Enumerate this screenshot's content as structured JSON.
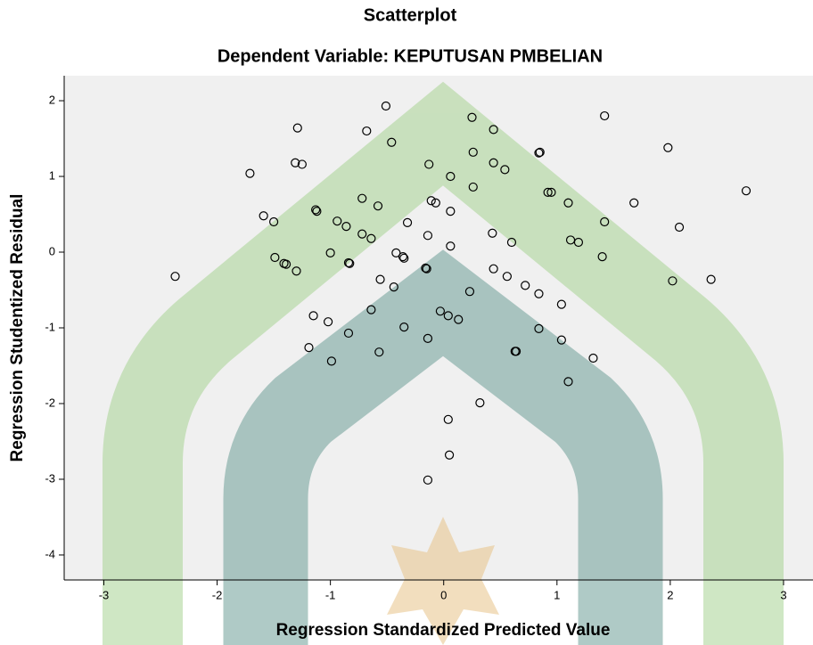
{
  "chart_data": {
    "type": "scatter",
    "title": "Scatterplot",
    "subtitle": "Dependent Variable: KEPUTUSAN PMBELIAN",
    "x_label": "Regression Standardized Predicted Value",
    "y_label": "Regression Studentized Residual",
    "xlim": [
      -3.35,
      3.26
    ],
    "ylim": [
      -4.33,
      2.33
    ],
    "xticks": [
      -3,
      -2,
      -1,
      0,
      1,
      2,
      3
    ],
    "yticks": [
      -4,
      -3,
      -2,
      -1,
      0,
      1,
      2
    ],
    "color": "#000000",
    "background": "#f0f0f0",
    "x": [
      -2.37,
      -1.71,
      -1.59,
      -1.5,
      -1.49,
      -1.41,
      -1.39,
      -1.3,
      -1.29,
      -1.31,
      -1.25,
      -1.19,
      -1.15,
      -1.13,
      -1.12,
      -1.02,
      -1.0,
      -0.99,
      -0.94,
      -0.86,
      -0.84,
      -0.84,
      -0.83,
      -0.72,
      -0.72,
      -0.68,
      -0.64,
      -0.64,
      -0.58,
      -0.57,
      -0.56,
      -0.51,
      -0.46,
      -0.44,
      -0.42,
      -0.36,
      -0.35,
      -0.35,
      -0.32,
      -0.16,
      -0.15,
      -0.14,
      -0.14,
      -0.14,
      -0.13,
      -0.11,
      -0.07,
      -0.03,
      0.04,
      0.04,
      0.05,
      0.06,
      0.06,
      0.06,
      0.13,
      0.23,
      0.25,
      0.26,
      0.26,
      0.32,
      0.43,
      0.44,
      0.44,
      0.44,
      0.54,
      0.56,
      0.6,
      0.63,
      0.64,
      0.72,
      0.84,
      0.84,
      0.85,
      0.84,
      0.92,
      0.95,
      1.04,
      1.04,
      1.1,
      1.1,
      1.12,
      1.19,
      1.32,
      1.4,
      1.42,
      1.42,
      1.68,
      1.98,
      2.02,
      2.08,
      2.36,
      2.67
    ],
    "y": [
      -0.32,
      1.04,
      0.48,
      0.4,
      -0.07,
      -0.15,
      -0.16,
      -0.25,
      1.64,
      1.18,
      1.16,
      -1.26,
      -0.84,
      0.56,
      0.54,
      -0.92,
      -0.01,
      -1.44,
      0.41,
      0.34,
      -1.07,
      -0.14,
      -0.15,
      0.71,
      0.24,
      1.6,
      0.18,
      -0.76,
      0.61,
      -1.32,
      -0.36,
      1.93,
      1.45,
      -0.46,
      -0.01,
      -0.06,
      -0.08,
      -0.99,
      0.39,
      -0.21,
      -0.22,
      0.22,
      -1.14,
      -3.01,
      1.16,
      0.68,
      0.65,
      -0.78,
      -0.84,
      -2.21,
      -2.68,
      1.0,
      0.54,
      0.08,
      -0.89,
      -0.52,
      1.78,
      1.32,
      0.86,
      -1.99,
      0.25,
      1.62,
      -0.22,
      1.18,
      1.09,
      -0.32,
      0.13,
      -1.31,
      -1.31,
      -0.44,
      -0.55,
      1.31,
      1.32,
      -1.01,
      0.79,
      0.79,
      -0.69,
      -1.16,
      0.65,
      -1.71,
      0.16,
      0.13,
      -1.4,
      -0.06,
      1.8,
      0.4,
      0.65,
      1.38,
      -0.38,
      0.33,
      -0.36,
      0.81
    ]
  }
}
